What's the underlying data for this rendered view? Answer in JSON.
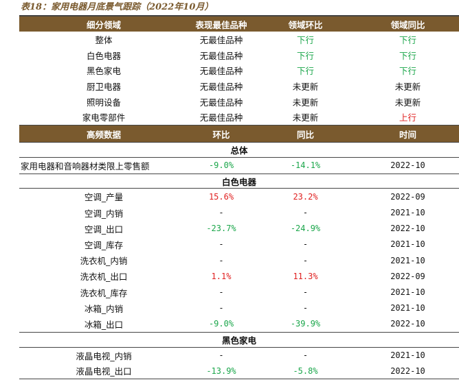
{
  "title": "表18：家用电器月底景气跟踪（2022年10月）",
  "colors": {
    "header_bg": "#7a5a2e",
    "green": "#1aa64a",
    "red": "#e02020"
  },
  "top_headers": [
    "细分领域",
    "表现最佳品种",
    "领域环比",
    "领域同比"
  ],
  "top_rows": [
    {
      "name": "整体",
      "best": "无最佳品种",
      "mom": "下行",
      "yoy": "下行",
      "mom_color": "green",
      "yoy_color": "green"
    },
    {
      "name": "白色电器",
      "best": "无最佳品种",
      "mom": "下行",
      "yoy": "下行",
      "mom_color": "green",
      "yoy_color": "green"
    },
    {
      "name": "黑色家电",
      "best": "无最佳品种",
      "mom": "下行",
      "yoy": "下行",
      "mom_color": "green",
      "yoy_color": "green"
    },
    {
      "name": "厨卫电器",
      "best": "无最佳品种",
      "mom": "未更新",
      "yoy": "未更新",
      "mom_color": "",
      "yoy_color": ""
    },
    {
      "name": "照明设备",
      "best": "无最佳品种",
      "mom": "未更新",
      "yoy": "未更新",
      "mom_color": "",
      "yoy_color": ""
    },
    {
      "name": "家电零部件",
      "best": "无最佳品种",
      "mom": "未更新",
      "yoy": "上行",
      "mom_color": "",
      "yoy_color": "red"
    }
  ],
  "hf_headers": [
    "高频数据",
    "环比",
    "同比",
    "时间"
  ],
  "sections": [
    {
      "title": "总体",
      "rows": [
        {
          "name": "家用电器和音响器材类限上零售额",
          "mom": "-9.0%",
          "yoy": "-14.1%",
          "time": "2022-10",
          "mom_color": "green",
          "yoy_color": "green",
          "left": true
        }
      ]
    },
    {
      "title": "白色电器",
      "rows": [
        {
          "name": "空调_产量",
          "mom": "15.6%",
          "yoy": "23.2%",
          "time": "2022-09",
          "mom_color": "red",
          "yoy_color": "red"
        },
        {
          "name": "空调_内销",
          "mom": "-",
          "yoy": "-",
          "time": "2021-10",
          "mom_color": "",
          "yoy_color": ""
        },
        {
          "name": "空调_出口",
          "mom": "-23.7%",
          "yoy": "-24.9%",
          "time": "2022-10",
          "mom_color": "green",
          "yoy_color": "green"
        },
        {
          "name": "空调_库存",
          "mom": "-",
          "yoy": "-",
          "time": "2021-10",
          "mom_color": "",
          "yoy_color": ""
        },
        {
          "name": "洗衣机_内销",
          "mom": "-",
          "yoy": "-",
          "time": "2021-10",
          "mom_color": "",
          "yoy_color": ""
        },
        {
          "name": "洗衣机_出口",
          "mom": "1.1%",
          "yoy": "11.3%",
          "time": "2022-09",
          "mom_color": "red",
          "yoy_color": "red"
        },
        {
          "name": "洗衣机_库存",
          "mom": "-",
          "yoy": "-",
          "time": "2021-10",
          "mom_color": "",
          "yoy_color": ""
        },
        {
          "name": "冰箱_内销",
          "mom": "-",
          "yoy": "-",
          "time": "2021-10",
          "mom_color": "",
          "yoy_color": ""
        },
        {
          "name": "冰箱_出口",
          "mom": "-9.0%",
          "yoy": "-39.9%",
          "time": "2022-10",
          "mom_color": "green",
          "yoy_color": "green"
        }
      ]
    },
    {
      "title": "黑色家电",
      "rows": [
        {
          "name": "液晶电视_内销",
          "mom": "-",
          "yoy": "-",
          "time": "2021-10",
          "mom_color": "",
          "yoy_color": ""
        },
        {
          "name": "液晶电视_出口",
          "mom": "-13.9%",
          "yoy": "-5.8%",
          "time": "2022-10",
          "mom_color": "green",
          "yoy_color": "green"
        }
      ]
    }
  ]
}
